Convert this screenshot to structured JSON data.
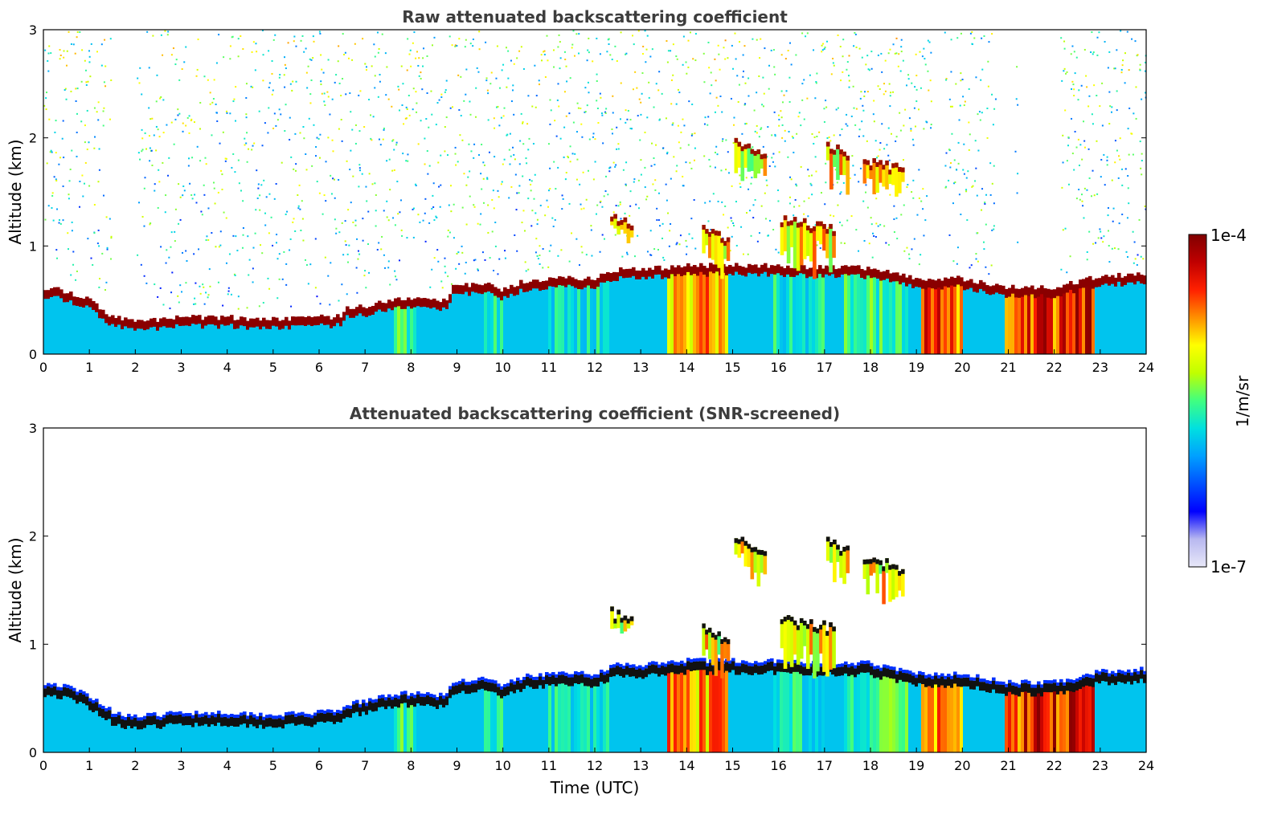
{
  "chart_data": [
    {
      "type": "heatmap",
      "id": "raw",
      "title": "Raw attenuated backscattering coefficient",
      "xlabel": "",
      "ylabel": "Altitude (km)",
      "xlim": [
        0,
        24
      ],
      "ylim": [
        0,
        3
      ],
      "x_ticks": [
        "0",
        "1",
        "2",
        "3",
        "4",
        "5",
        "6",
        "7",
        "8",
        "9",
        "10",
        "11",
        "12",
        "13",
        "14",
        "15",
        "16",
        "17",
        "18",
        "19",
        "20",
        "21",
        "22",
        "23",
        "24"
      ],
      "y_ticks": [
        "0",
        "1",
        "2",
        "3"
      ],
      "screened": false
    },
    {
      "type": "heatmap",
      "id": "screened",
      "title": "Attenuated backscattering coefficient (SNR-screened)",
      "xlabel": "Time (UTC)",
      "ylabel": "Altitude (km)",
      "xlim": [
        0,
        24
      ],
      "ylim": [
        0,
        3
      ],
      "x_ticks": [
        "0",
        "1",
        "2",
        "3",
        "4",
        "5",
        "6",
        "7",
        "8",
        "9",
        "10",
        "11",
        "12",
        "13",
        "14",
        "15",
        "16",
        "17",
        "18",
        "19",
        "20",
        "21",
        "22",
        "23",
        "24"
      ],
      "y_ticks": [
        "0",
        "1",
        "2",
        "3"
      ],
      "screened": true
    }
  ],
  "colorbar": {
    "label": "1/m/sr",
    "max_label": "1e-4",
    "min_label": "1e-7",
    "scale": "log",
    "colormap": [
      "#e8e8f8",
      "#b8b8f0",
      "#0000ff",
      "#0050ff",
      "#00a0ff",
      "#00e0e0",
      "#40ff80",
      "#c0ff00",
      "#ffff00",
      "#ff9000",
      "#ff2000",
      "#c00000",
      "#800000"
    ]
  },
  "profile": {
    "layer_top_km": [
      [
        0,
        0.62
      ],
      [
        0.5,
        0.58
      ],
      [
        1,
        0.5
      ],
      [
        1.5,
        0.35
      ],
      [
        2,
        0.3
      ],
      [
        3,
        0.34
      ],
      [
        4,
        0.34
      ],
      [
        5,
        0.32
      ],
      [
        6,
        0.34
      ],
      [
        6.5,
        0.35
      ],
      [
        6.6,
        0.42
      ],
      [
        7,
        0.44
      ],
      [
        7.5,
        0.5
      ],
      [
        8,
        0.52
      ],
      [
        8.8,
        0.5
      ],
      [
        8.9,
        0.62
      ],
      [
        9.5,
        0.66
      ],
      [
        10,
        0.6
      ],
      [
        10.5,
        0.68
      ],
      [
        11,
        0.7
      ],
      [
        12,
        0.7
      ],
      [
        12.5,
        0.78
      ],
      [
        13,
        0.78
      ],
      [
        13.5,
        0.8
      ],
      [
        14,
        0.82
      ],
      [
        15,
        0.82
      ],
      [
        16,
        0.82
      ],
      [
        17,
        0.8
      ],
      [
        18,
        0.8
      ],
      [
        19,
        0.7
      ],
      [
        20,
        0.7
      ],
      [
        21,
        0.62
      ],
      [
        22,
        0.62
      ],
      [
        23,
        0.72
      ],
      [
        24,
        0.74
      ]
    ],
    "colored_column_bands": [
      {
        "t0": 7.6,
        "t1": 8.1,
        "level": 0.5
      },
      {
        "t0": 9.6,
        "t1": 10.0,
        "level": 0.45
      },
      {
        "t0": 11.0,
        "t1": 12.3,
        "level": 0.45
      },
      {
        "t0": 13.6,
        "t1": 14.9,
        "level": 0.75
      },
      {
        "t0": 15.9,
        "t1": 17.0,
        "level": 0.45
      },
      {
        "t0": 17.4,
        "t1": 18.8,
        "level": 0.5
      },
      {
        "t0": 19.1,
        "t1": 20.0,
        "level": 0.82
      },
      {
        "t0": 20.9,
        "t1": 22.9,
        "level": 0.87
      }
    ],
    "elevated_clouds": [
      {
        "t0": 15.0,
        "t1": 15.7,
        "alt": 2.02,
        "depth": 0.25
      },
      {
        "t0": 17.0,
        "t1": 17.5,
        "alt": 2.0,
        "depth": 0.3
      },
      {
        "t0": 17.8,
        "t1": 18.7,
        "alt": 1.85,
        "depth": 0.25
      },
      {
        "t0": 12.3,
        "t1": 12.8,
        "alt": 1.35,
        "depth": 0.15
      },
      {
        "t0": 14.3,
        "t1": 14.9,
        "alt": 1.2,
        "depth": 0.3
      },
      {
        "t0": 16.0,
        "t1": 17.2,
        "alt": 1.3,
        "depth": 0.35
      }
    ],
    "gaps_raw": [
      [
        1.5,
        2.0
      ],
      [
        14.2,
        14.35
      ],
      [
        19.3,
        19.6
      ],
      [
        20.7,
        21.1
      ],
      [
        21.2,
        22.1
      ]
    ]
  }
}
